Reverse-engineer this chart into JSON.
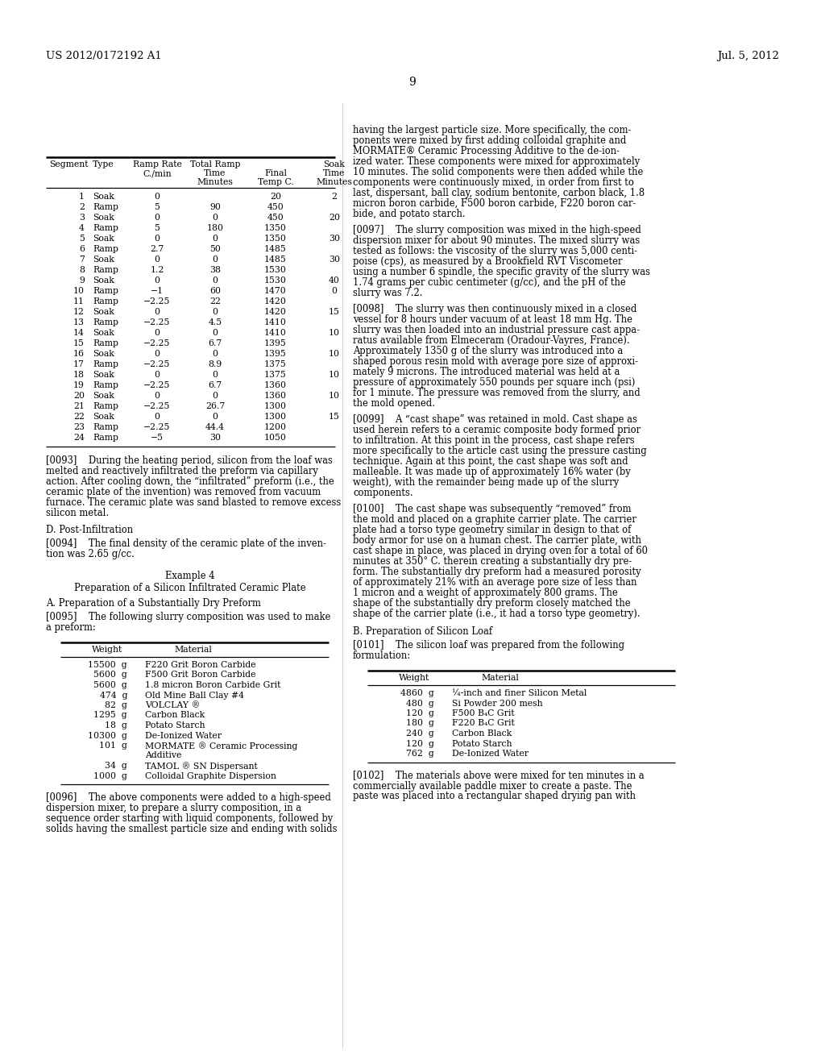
{
  "header_left": "US 2012/0172192 A1",
  "header_right": "Jul. 5, 2012",
  "page_number": "9",
  "table1_data": [
    [
      "1",
      "Soak",
      "0",
      "",
      "20",
      "2"
    ],
    [
      "2",
      "Ramp",
      "5",
      "90",
      "450",
      ""
    ],
    [
      "3",
      "Soak",
      "0",
      "0",
      "450",
      "20"
    ],
    [
      "4",
      "Ramp",
      "5",
      "180",
      "1350",
      ""
    ],
    [
      "5",
      "Soak",
      "0",
      "0",
      "1350",
      "30"
    ],
    [
      "6",
      "Ramp",
      "2.7",
      "50",
      "1485",
      ""
    ],
    [
      "7",
      "Soak",
      "0",
      "0",
      "1485",
      "30"
    ],
    [
      "8",
      "Ramp",
      "1.2",
      "38",
      "1530",
      ""
    ],
    [
      "9",
      "Soak",
      "0",
      "0",
      "1530",
      "40"
    ],
    [
      "10",
      "Ramp",
      "−1",
      "60",
      "1470",
      "0"
    ],
    [
      "11",
      "Ramp",
      "−2.25",
      "22",
      "1420",
      ""
    ],
    [
      "12",
      "Soak",
      "0",
      "0",
      "1420",
      "15"
    ],
    [
      "13",
      "Ramp",
      "−2.25",
      "4.5",
      "1410",
      ""
    ],
    [
      "14",
      "Soak",
      "0",
      "0",
      "1410",
      "10"
    ],
    [
      "15",
      "Ramp",
      "−2.25",
      "6.7",
      "1395",
      ""
    ],
    [
      "16",
      "Soak",
      "0",
      "0",
      "1395",
      "10"
    ],
    [
      "17",
      "Ramp",
      "−2.25",
      "8.9",
      "1375",
      ""
    ],
    [
      "18",
      "Soak",
      "0",
      "0",
      "1375",
      "10"
    ],
    [
      "19",
      "Ramp",
      "−2.25",
      "6.7",
      "1360",
      ""
    ],
    [
      "20",
      "Soak",
      "0",
      "0",
      "1360",
      "10"
    ],
    [
      "21",
      "Ramp",
      "−2.25",
      "26.7",
      "1300",
      ""
    ],
    [
      "22",
      "Soak",
      "0",
      "0",
      "1300",
      "15"
    ],
    [
      "23",
      "Ramp",
      "−2.25",
      "44.4",
      "1200",
      ""
    ],
    [
      "24",
      "Ramp",
      "−5",
      "30",
      "1050",
      ""
    ]
  ],
  "para_093_lines": [
    "[0093]    During the heating period, silicon from the loaf was",
    "melted and reactively infiltrated the preform via capillary",
    "action. After cooling down, the “infiltrated” preform (i.e., the",
    "ceramic plate of the invention) was removed from vacuum",
    "furnace. The ceramic plate was sand blasted to remove excess",
    "silicon metal."
  ],
  "section_D": "D. Post-Infiltration",
  "para_094_lines": [
    "[0094]    The final density of the ceramic plate of the inven-",
    "tion was 2.65 g/cc."
  ],
  "example4_title": "Example 4",
  "example4_subtitle": "Preparation of a Silicon Infiltrated Ceramic Plate",
  "section_A": "A. Preparation of a Substantially Dry Preform",
  "para_095_lines": [
    "[0095]    The following slurry composition was used to make",
    "a preform:"
  ],
  "table2_data": [
    [
      "15500  g",
      "F220 Grit Boron Carbide"
    ],
    [
      "5600  g",
      "F500 Grit Boron Carbide"
    ],
    [
      "5600  g",
      "1.8 micron Boron Carbide Grit"
    ],
    [
      "474  g",
      "Old Mine Ball Clay #4"
    ],
    [
      "82  g",
      "VOLCLAY ®"
    ],
    [
      "1295  g",
      "Carbon Black"
    ],
    [
      "18  g",
      "Potato Starch"
    ],
    [
      "10300  g",
      "De-Ionized Water"
    ],
    [
      "101  g",
      "MORMATE ® Ceramic Processing"
    ],
    [
      "",
      "Additive"
    ],
    [
      "34  g",
      "TAMOL ® SN Dispersant"
    ],
    [
      "1000  g",
      "Colloidal Graphite Dispersion"
    ]
  ],
  "para_096_lines": [
    "[0096]    The above components were added to a high-speed",
    "dispersion mixer, to prepare a slurry composition, in a",
    "sequence order starting with liquid components, followed by",
    "solids having the smallest particle size and ending with solids"
  ],
  "rc_text1_lines": [
    "having the largest particle size. More specifically, the com-",
    "ponents were mixed by first adding colloidal graphite and",
    "MORMATE® Ceramic Processing Additive to the de-ion-",
    "ized water. These components were mixed for approximately",
    "10 minutes. The solid components were then added while the",
    "components were continuously mixed, in order from first to",
    "last, dispersant, ball clay, sodium bentonite, carbon black, 1.8",
    "micron boron carbide, F500 boron carbide, F220 boron car-",
    "bide, and potato starch."
  ],
  "para_097_lines": [
    "[0097]    The slurry composition was mixed in the high-speed",
    "dispersion mixer for about 90 minutes. The mixed slurry was",
    "tested as follows: the viscosity of the slurry was 5,000 centi-",
    "poise (cps), as measured by a Brookfield RVT Viscometer",
    "using a number 6 spindle, the specific gravity of the slurry was",
    "1.74 grams per cubic centimeter (g/cc), and the pH of the",
    "slurry was 7.2."
  ],
  "para_098_lines": [
    "[0098]    The slurry was then continuously mixed in a closed",
    "vessel for 8 hours under vacuum of at least 18 mm Hg. The",
    "slurry was then loaded into an industrial pressure cast appa-",
    "ratus available from Elmeceram (Oradour-Vayres, France).",
    "Approximately 1350 g of the slurry was introduced into a",
    "shaped porous resin mold with average pore size of approxi-",
    "mately 9 microns. The introduced material was held at a",
    "pressure of approximately 550 pounds per square inch (psi)",
    "for 1 minute. The pressure was removed from the slurry, and",
    "the mold opened."
  ],
  "para_099_lines": [
    "[0099]    A “cast shape” was retained in mold. Cast shape as",
    "used herein refers to a ceramic composite body formed prior",
    "to infiltration. At this point in the process, cast shape refers",
    "more specifically to the article cast using the pressure casting",
    "technique. Again at this point, the cast shape was soft and",
    "malleable. It was made up of approximately 16% water (by",
    "weight), with the remainder being made up of the slurry",
    "components."
  ],
  "para_100_lines": [
    "[0100]    The cast shape was subsequently “removed” from",
    "the mold and placed on a graphite carrier plate. The carrier",
    "plate had a torso type geometry similar in design to that of",
    "body armor for use on a human chest. The carrier plate, with",
    "cast shape in place, was placed in drying oven for a total of 60",
    "minutes at 350° C. therein creating a substantially dry pre-",
    "form. The substantially dry preform had a measured porosity",
    "of approximately 21% with an average pore size of less than",
    "1 micron and a weight of approximately 800 grams. The",
    "shape of the substantially dry preform closely matched the",
    "shape of the carrier plate (i.e., it had a torso type geometry)."
  ],
  "section_B": "B. Preparation of Silicon Loaf",
  "para_101_lines": [
    "[0101]    The silicon loaf was prepared from the following",
    "formulation:"
  ],
  "table3_data": [
    [
      "4860  g",
      "¼-inch and finer Silicon Metal"
    ],
    [
      "480  g",
      "Si Powder 200 mesh"
    ],
    [
      "120  g",
      "F500 B₄C Grit"
    ],
    [
      "180  g",
      "F220 B₄C Grit"
    ],
    [
      "240  g",
      "Carbon Black"
    ],
    [
      "120  g",
      "Potato Starch"
    ],
    [
      "762  g",
      "De-Ionized Water"
    ]
  ],
  "para_102_lines": [
    "[0102]    The materials above were mixed for ten minutes in a",
    "commercially available paddle mixer to create a paste. The",
    "paste was placed into a rectangular shaped drying pan with"
  ]
}
